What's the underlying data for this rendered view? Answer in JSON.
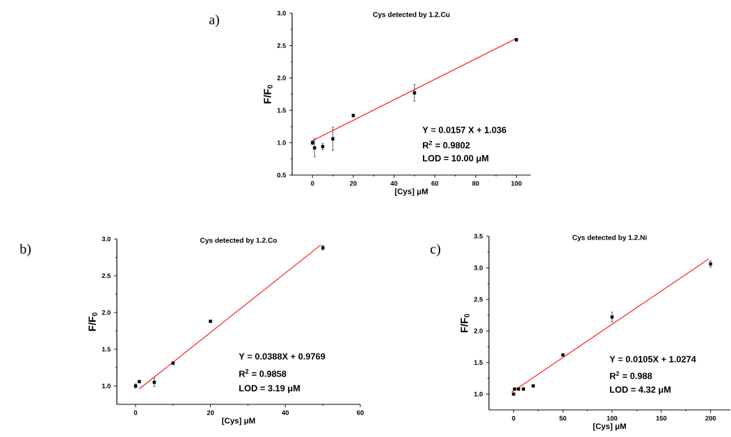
{
  "chart_data": [
    {
      "type": "scatter",
      "title": "Cys detected by 1.2.Cu",
      "xlabel": "[Cys] μM",
      "ylabel": "F/F$_{0}$",
      "xlim": [
        -10,
        107
      ],
      "ylim": [
        0.5,
        3.0
      ],
      "xticks": [
        0,
        20,
        40,
        60,
        80,
        100
      ],
      "yticks": [
        0.5,
        {
          "value": 1,
          "label": "1.0"
        },
        1.5,
        {
          "value": 2,
          "label": "2.0"
        },
        2.5,
        {
          "value": 3,
          "label": "3.0"
        }
      ],
      "marker": "square",
      "annotations": [
        "a)",
        "Y = 0.0157 X + 1.036",
        "R$^{2}$ = 0.9802",
        "LOD = 10.00 μM"
      ],
      "series": [
        {
          "color": "#000000",
          "x": [
            0,
            1,
            5,
            10,
            20,
            50,
            100
          ],
          "values": [
            1.0,
            0.92,
            0.94,
            1.06,
            1.42,
            1.77,
            2.59
          ],
          "errors": [
            0.03,
            0.14,
            0.05,
            0.18,
            0.02,
            0.13,
            0.02
          ]
        },
        {
          "type": "line",
          "color": "#ff0000",
          "marker": "none",
          "x": [
            0,
            100
          ],
          "values": [
            1.03,
            2.61
          ]
        }
      ]
    },
    {
      "type": "scatter",
      "title": "Cys detected by 1.2.Co",
      "xlabel": "[Cys] μM",
      "ylabel": "F/F$_{0}$",
      "xlim": [
        -5,
        60
      ],
      "ylim": [
        0.75,
        3.0
      ],
      "xticks": [
        0,
        20,
        40,
        60
      ],
      "yticks": [
        {
          "value": 1,
          "label": "1.0"
        },
        1.5,
        {
          "value": 2,
          "label": "2.0"
        },
        2.5,
        {
          "value": 3,
          "label": "3.0"
        }
      ],
      "marker": "square",
      "annotations": [
        "b)",
        "Y = 0.0388X + 0.9769",
        "R$^{2}$ = 0.9858",
        "LOD =  3.19 μM"
      ],
      "series": [
        {
          "color": "#000000",
          "x": [
            0,
            1,
            5,
            10,
            20,
            50
          ],
          "values": [
            1.0,
            1.06,
            1.05,
            1.31,
            1.88,
            2.88
          ],
          "errors": [
            0.03,
            null,
            0.06,
            0.02,
            null,
            0.03
          ]
        },
        {
          "type": "line",
          "color": "#ff0000",
          "marker": "none",
          "x": [
            1,
            49.5
          ],
          "values": [
            0.96,
            2.92
          ]
        }
      ]
    },
    {
      "type": "scatter",
      "title": "Cys detected by 1.2.Ni",
      "xlabel": "[Cys] μM",
      "ylabel": "F/F$_{0}$",
      "xlim": [
        -25,
        220
      ],
      "ylim": [
        0.75,
        3.5
      ],
      "xticks": [
        0,
        50,
        100,
        150,
        200
      ],
      "yticks": [
        {
          "value": 1,
          "label": "1.0"
        },
        1.5,
        {
          "value": 2,
          "label": "2.0"
        },
        2.5,
        {
          "value": 3,
          "label": "3.0"
        },
        3.5
      ],
      "marker": "square",
      "annotations": [
        "c)",
        "Y = 0.0105X + 1.0274",
        "R$^{2}$ = 0.988",
        "LOD = 4.32 μM"
      ],
      "series": [
        {
          "color": "#000000",
          "x": [
            0,
            1,
            5,
            10,
            20,
            50,
            100,
            200
          ],
          "values": [
            1.0,
            1.08,
            1.08,
            1.08,
            1.13,
            1.62,
            2.22,
            3.06
          ],
          "errors": [
            0.01,
            0.01,
            0.01,
            0.02,
            0.01,
            0.01,
            0.08,
            0.05
          ]
        },
        {
          "type": "line",
          "color": "#ff0000",
          "marker": "none",
          "x": [
            -2,
            198
          ],
          "values": [
            1.03,
            3.14
          ]
        }
      ]
    }
  ]
}
